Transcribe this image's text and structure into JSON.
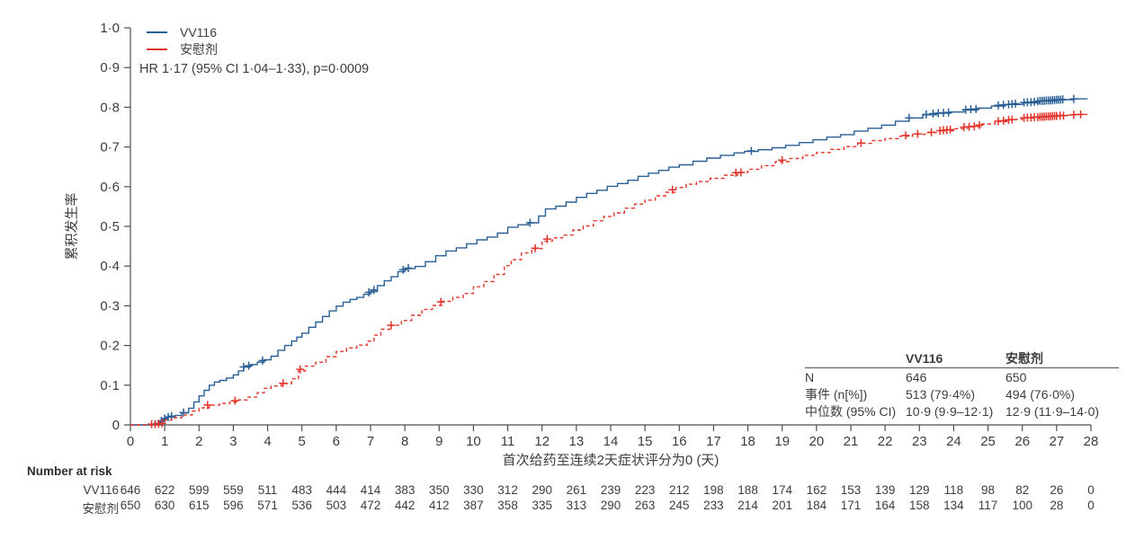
{
  "figure": {
    "hr_note": "HR 1·17 (95% CI 1·04–1·33), p=0·0009",
    "legend": [
      {
        "label": "VV116",
        "color": "#2a5f96",
        "style": "solid"
      },
      {
        "label": "安慰剂",
        "color": "#e2342a",
        "style": "dashed"
      }
    ],
    "text_color": "#3d3d3d",
    "axis_color": "#4d4d4d"
  },
  "chart_data": {
    "type": "line",
    "subtype": "kaplan-meier-step",
    "title": "",
    "xlabel": "首次给药至连续2天症状评分为0 (天)",
    "ylabel": "累积发生率",
    "xlim": [
      0,
      28
    ],
    "ylim": [
      0,
      1.0
    ],
    "xticks": [
      0,
      1,
      2,
      3,
      4,
      5,
      6,
      7,
      8,
      9,
      10,
      11,
      12,
      13,
      14,
      15,
      16,
      17,
      18,
      19,
      20,
      21,
      22,
      23,
      24,
      25,
      26,
      27,
      28
    ],
    "ytick_labels": [
      "0",
      "0·1",
      "0·2",
      "0·3",
      "0·4",
      "0·5",
      "0·6",
      "0·7",
      "0·8",
      "0·9",
      "1·0"
    ],
    "grid": false,
    "legend_position": "top-left",
    "series": [
      {
        "name": "VV116",
        "color": "#2a5f96",
        "style": "solid",
        "points": [
          [
            0,
            0
          ],
          [
            0.7,
            0.004
          ],
          [
            0.85,
            0.008
          ],
          [
            0.95,
            0.014
          ],
          [
            1.05,
            0.02
          ],
          [
            1.3,
            0.024
          ],
          [
            1.5,
            0.03
          ],
          [
            1.7,
            0.042
          ],
          [
            1.85,
            0.058
          ],
          [
            2.0,
            0.073
          ],
          [
            2.15,
            0.087
          ],
          [
            2.3,
            0.1
          ],
          [
            2.45,
            0.108
          ],
          [
            2.6,
            0.112
          ],
          [
            2.8,
            0.118
          ],
          [
            3.0,
            0.126
          ],
          [
            3.15,
            0.136
          ],
          [
            3.3,
            0.146
          ],
          [
            3.5,
            0.152
          ],
          [
            3.7,
            0.158
          ],
          [
            3.9,
            0.164
          ],
          [
            4.1,
            0.173
          ],
          [
            4.3,
            0.188
          ],
          [
            4.5,
            0.2
          ],
          [
            4.7,
            0.211
          ],
          [
            4.85,
            0.221
          ],
          [
            5.0,
            0.231
          ],
          [
            5.2,
            0.246
          ],
          [
            5.4,
            0.259
          ],
          [
            5.6,
            0.273
          ],
          [
            5.8,
            0.287
          ],
          [
            6.0,
            0.299
          ],
          [
            6.2,
            0.309
          ],
          [
            6.4,
            0.316
          ],
          [
            6.6,
            0.321
          ],
          [
            6.8,
            0.329
          ],
          [
            7.0,
            0.336
          ],
          [
            7.2,
            0.351
          ],
          [
            7.4,
            0.363
          ],
          [
            7.6,
            0.373
          ],
          [
            7.8,
            0.386
          ],
          [
            8.0,
            0.394
          ],
          [
            8.3,
            0.399
          ],
          [
            8.6,
            0.411
          ],
          [
            8.9,
            0.426
          ],
          [
            9.2,
            0.438
          ],
          [
            9.5,
            0.446
          ],
          [
            9.8,
            0.456
          ],
          [
            10.1,
            0.466
          ],
          [
            10.4,
            0.473
          ],
          [
            10.7,
            0.483
          ],
          [
            11.0,
            0.498
          ],
          [
            11.3,
            0.504
          ],
          [
            11.6,
            0.509
          ],
          [
            11.9,
            0.526
          ],
          [
            12.1,
            0.544
          ],
          [
            12.4,
            0.551
          ],
          [
            12.7,
            0.561
          ],
          [
            13.0,
            0.573
          ],
          [
            13.3,
            0.583
          ],
          [
            13.6,
            0.591
          ],
          [
            13.9,
            0.601
          ],
          [
            14.2,
            0.608
          ],
          [
            14.5,
            0.616
          ],
          [
            14.8,
            0.626
          ],
          [
            15.1,
            0.634
          ],
          [
            15.4,
            0.641
          ],
          [
            15.7,
            0.649
          ],
          [
            16.0,
            0.655
          ],
          [
            16.4,
            0.664
          ],
          [
            16.8,
            0.672
          ],
          [
            17.2,
            0.679
          ],
          [
            17.6,
            0.685
          ],
          [
            17.9,
            0.689
          ],
          [
            18.3,
            0.693
          ],
          [
            18.7,
            0.698
          ],
          [
            19.1,
            0.704
          ],
          [
            19.5,
            0.711
          ],
          [
            19.9,
            0.718
          ],
          [
            20.3,
            0.725
          ],
          [
            20.7,
            0.731
          ],
          [
            21.1,
            0.74
          ],
          [
            21.5,
            0.747
          ],
          [
            21.9,
            0.755
          ],
          [
            22.3,
            0.765
          ],
          [
            22.7,
            0.773
          ],
          [
            23.1,
            0.781
          ],
          [
            23.5,
            0.785
          ],
          [
            23.9,
            0.788
          ],
          [
            24.3,
            0.793
          ],
          [
            24.7,
            0.798
          ],
          [
            25.1,
            0.803
          ],
          [
            25.5,
            0.807
          ],
          [
            26.0,
            0.811
          ],
          [
            26.5,
            0.816
          ],
          [
            27.0,
            0.819
          ],
          [
            27.5,
            0.821
          ],
          [
            27.9,
            0.821
          ]
        ],
        "censors": [
          [
            0.9,
            0.01
          ],
          [
            1.0,
            0.016
          ],
          [
            1.1,
            0.02
          ],
          [
            1.2,
            0.022
          ],
          [
            1.55,
            0.031
          ],
          [
            3.3,
            0.146
          ],
          [
            3.45,
            0.149
          ],
          [
            3.85,
            0.162
          ],
          [
            6.95,
            0.334
          ],
          [
            7.1,
            0.34
          ],
          [
            7.95,
            0.391
          ],
          [
            8.1,
            0.395
          ],
          [
            11.65,
            0.509
          ],
          [
            18.1,
            0.69
          ],
          [
            22.7,
            0.773
          ],
          [
            23.2,
            0.782
          ],
          [
            23.4,
            0.784
          ],
          [
            23.55,
            0.785
          ],
          [
            23.7,
            0.786
          ],
          [
            23.85,
            0.787
          ],
          [
            24.35,
            0.794
          ],
          [
            24.5,
            0.795
          ],
          [
            24.65,
            0.796
          ],
          [
            25.3,
            0.805
          ],
          [
            25.45,
            0.806
          ],
          [
            25.6,
            0.807
          ],
          [
            25.7,
            0.808
          ],
          [
            25.8,
            0.809
          ],
          [
            26.05,
            0.812
          ],
          [
            26.15,
            0.813
          ],
          [
            26.25,
            0.813
          ],
          [
            26.35,
            0.814
          ],
          [
            26.45,
            0.815
          ],
          [
            26.52,
            0.816
          ],
          [
            26.58,
            0.816
          ],
          [
            26.64,
            0.816
          ],
          [
            26.7,
            0.817
          ],
          [
            26.76,
            0.817
          ],
          [
            26.82,
            0.817
          ],
          [
            26.88,
            0.818
          ],
          [
            26.94,
            0.818
          ],
          [
            27.0,
            0.819
          ],
          [
            27.06,
            0.819
          ],
          [
            27.12,
            0.819
          ],
          [
            27.18,
            0.82
          ],
          [
            27.5,
            0.821
          ]
        ]
      },
      {
        "name": "安慰剂",
        "color": "#e2342a",
        "style": "dashed",
        "points": [
          [
            0,
            0
          ],
          [
            0.8,
            0.003
          ],
          [
            1.0,
            0.012
          ],
          [
            1.2,
            0.018
          ],
          [
            1.5,
            0.025
          ],
          [
            1.8,
            0.035
          ],
          [
            2.0,
            0.043
          ],
          [
            2.3,
            0.05
          ],
          [
            2.6,
            0.054
          ],
          [
            2.9,
            0.058
          ],
          [
            3.1,
            0.063
          ],
          [
            3.4,
            0.07
          ],
          [
            3.7,
            0.081
          ],
          [
            3.9,
            0.092
          ],
          [
            4.1,
            0.098
          ],
          [
            4.4,
            0.104
          ],
          [
            4.7,
            0.116
          ],
          [
            4.9,
            0.136
          ],
          [
            5.1,
            0.148
          ],
          [
            5.4,
            0.158
          ],
          [
            5.7,
            0.172
          ],
          [
            6.0,
            0.185
          ],
          [
            6.3,
            0.194
          ],
          [
            6.6,
            0.201
          ],
          [
            6.9,
            0.211
          ],
          [
            7.1,
            0.226
          ],
          [
            7.3,
            0.241
          ],
          [
            7.6,
            0.251
          ],
          [
            7.9,
            0.263
          ],
          [
            8.2,
            0.276
          ],
          [
            8.5,
            0.291
          ],
          [
            8.8,
            0.301
          ],
          [
            9.1,
            0.311
          ],
          [
            9.4,
            0.321
          ],
          [
            9.7,
            0.331
          ],
          [
            10.0,
            0.348
          ],
          [
            10.3,
            0.361
          ],
          [
            10.6,
            0.379
          ],
          [
            10.9,
            0.401
          ],
          [
            11.1,
            0.416
          ],
          [
            11.4,
            0.433
          ],
          [
            11.7,
            0.444
          ],
          [
            12.0,
            0.463
          ],
          [
            12.3,
            0.471
          ],
          [
            12.6,
            0.478
          ],
          [
            12.9,
            0.491
          ],
          [
            13.2,
            0.501
          ],
          [
            13.5,
            0.514
          ],
          [
            13.8,
            0.525
          ],
          [
            14.1,
            0.534
          ],
          [
            14.4,
            0.546
          ],
          [
            14.7,
            0.556
          ],
          [
            15.0,
            0.566
          ],
          [
            15.3,
            0.577
          ],
          [
            15.6,
            0.586
          ],
          [
            15.9,
            0.598
          ],
          [
            16.2,
            0.606
          ],
          [
            16.5,
            0.613
          ],
          [
            16.9,
            0.621
          ],
          [
            17.3,
            0.629
          ],
          [
            17.7,
            0.636
          ],
          [
            18.0,
            0.644
          ],
          [
            18.4,
            0.653
          ],
          [
            18.8,
            0.663
          ],
          [
            19.2,
            0.671
          ],
          [
            19.6,
            0.679
          ],
          [
            20.0,
            0.686
          ],
          [
            20.4,
            0.694
          ],
          [
            20.8,
            0.701
          ],
          [
            21.2,
            0.709
          ],
          [
            21.6,
            0.716
          ],
          [
            22.0,
            0.721
          ],
          [
            22.4,
            0.727
          ],
          [
            22.8,
            0.732
          ],
          [
            23.2,
            0.736
          ],
          [
            23.6,
            0.741
          ],
          [
            24.0,
            0.746
          ],
          [
            24.4,
            0.751
          ],
          [
            24.8,
            0.758
          ],
          [
            25.2,
            0.764
          ],
          [
            25.6,
            0.769
          ],
          [
            26.0,
            0.773
          ],
          [
            26.5,
            0.777
          ],
          [
            27.0,
            0.78
          ],
          [
            27.5,
            0.782
          ],
          [
            27.9,
            0.782
          ]
        ],
        "censors": [
          [
            0.62,
            0.002
          ],
          [
            0.72,
            0.002
          ],
          [
            0.82,
            0.003
          ],
          [
            0.92,
            0.004
          ],
          [
            2.25,
            0.05
          ],
          [
            3.05,
            0.061
          ],
          [
            4.45,
            0.105
          ],
          [
            4.95,
            0.14
          ],
          [
            7.6,
            0.251
          ],
          [
            9.05,
            0.31
          ],
          [
            11.8,
            0.445
          ],
          [
            12.15,
            0.468
          ],
          [
            15.8,
            0.592
          ],
          [
            17.65,
            0.635
          ],
          [
            17.8,
            0.636
          ],
          [
            19.0,
            0.667
          ],
          [
            21.3,
            0.71
          ],
          [
            22.6,
            0.729
          ],
          [
            22.95,
            0.733
          ],
          [
            23.35,
            0.737
          ],
          [
            23.6,
            0.741
          ],
          [
            23.7,
            0.742
          ],
          [
            23.8,
            0.743
          ],
          [
            23.9,
            0.744
          ],
          [
            24.3,
            0.75
          ],
          [
            24.45,
            0.751
          ],
          [
            24.6,
            0.752
          ],
          [
            24.75,
            0.755
          ],
          [
            25.3,
            0.765
          ],
          [
            25.45,
            0.766
          ],
          [
            25.6,
            0.768
          ],
          [
            25.7,
            0.769
          ],
          [
            26.05,
            0.773
          ],
          [
            26.15,
            0.774
          ],
          [
            26.25,
            0.774
          ],
          [
            26.35,
            0.775
          ],
          [
            26.45,
            0.775
          ],
          [
            26.52,
            0.776
          ],
          [
            26.58,
            0.776
          ],
          [
            26.64,
            0.776
          ],
          [
            26.7,
            0.777
          ],
          [
            26.76,
            0.777
          ],
          [
            26.82,
            0.777
          ],
          [
            26.88,
            0.778
          ],
          [
            26.94,
            0.778
          ],
          [
            27.0,
            0.778
          ],
          [
            27.1,
            0.779
          ],
          [
            27.2,
            0.779
          ],
          [
            27.5,
            0.781
          ],
          [
            27.7,
            0.782
          ]
        ]
      }
    ]
  },
  "stats_table": {
    "headers": [
      "",
      "VV116",
      "安慰剂"
    ],
    "rows": [
      {
        "label": "N",
        "vv116": "646",
        "placebo": "650"
      },
      {
        "label": "事件 (n[%])",
        "vv116": "513 (79·4%)",
        "placebo": "494 (76·0%)"
      },
      {
        "label": "中位数 (95% CI)",
        "vv116": "10·9 (9·9–12·1)",
        "placebo": "12·9 (11·9–14·0)"
      }
    ]
  },
  "risk_table": {
    "title": "Number at risk",
    "rows": [
      {
        "label": "VV116",
        "values": [
          646,
          622,
          599,
          559,
          511,
          483,
          444,
          414,
          383,
          350,
          330,
          312,
          290,
          261,
          239,
          223,
          212,
          198,
          188,
          174,
          162,
          153,
          139,
          129,
          118,
          98,
          82,
          26,
          0
        ]
      },
      {
        "label": "安慰剂",
        "values": [
          650,
          630,
          615,
          596,
          571,
          536,
          503,
          472,
          442,
          412,
          387,
          358,
          335,
          313,
          290,
          263,
          245,
          233,
          214,
          201,
          184,
          171,
          164,
          158,
          134,
          117,
          100,
          28,
          0
        ]
      }
    ]
  }
}
